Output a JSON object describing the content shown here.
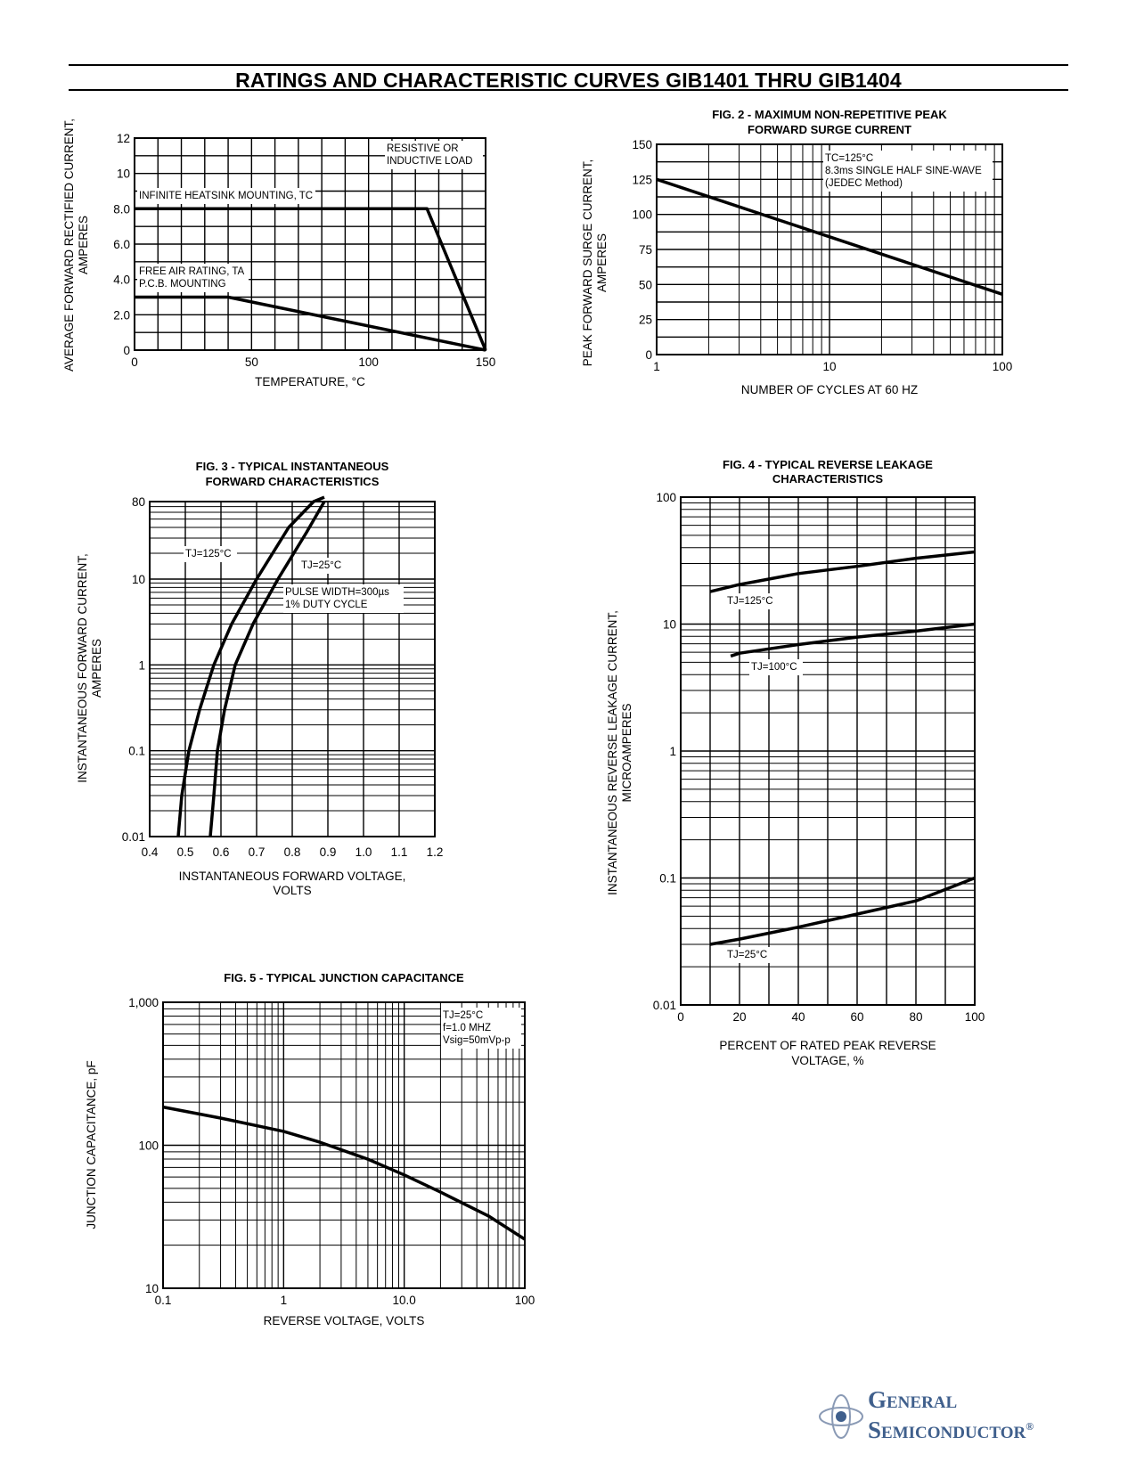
{
  "page": {
    "title": "RATINGS AND CHARACTERISTIC CURVES GIB1401 THRU GIB1404",
    "logo": {
      "line1": "General",
      "line2": "Semiconductor",
      "mark": "®",
      "color": "#3f5f8c"
    }
  },
  "chart_data": [
    {
      "id": "fig1",
      "type": "line",
      "title": "",
      "xlabel": "TEMPERATURE, °C",
      "ylabel": [
        "AVERAGE FORWARD RECTIFIED CURRENT,",
        "AMPERES"
      ],
      "xlim": [
        0,
        150
      ],
      "ylim": [
        0,
        12
      ],
      "xticks": [
        0,
        50,
        100,
        150
      ],
      "xtick_labels": [
        "0",
        "50",
        "100",
        "150"
      ],
      "yticks": [
        0,
        2,
        4,
        6,
        8,
        10,
        12
      ],
      "ytick_labels": [
        "0",
        "2.0",
        "4.0",
        "6.0",
        "8.0",
        "10",
        "12"
      ],
      "grid": true,
      "series": [
        {
          "name": "INFINITE HEATSINK MOUNTING, TC",
          "x": [
            0,
            125,
            150
          ],
          "y": [
            8.0,
            8.0,
            0
          ]
        },
        {
          "name": "FREE AIR RATING, TA",
          "x": [
            0,
            40,
            150
          ],
          "y": [
            3.0,
            3.0,
            0
          ]
        }
      ],
      "annotations": [
        {
          "lines": [
            "RESISTIVE OR",
            "INDUCTIVE LOAD"
          ]
        },
        {
          "lines": [
            "INFINITE HEATSINK MOUNTING, TC"
          ]
        },
        {
          "lines": [
            "FREE AIR RATING, TA",
            "P.C.B. MOUNTING"
          ]
        }
      ]
    },
    {
      "id": "fig2",
      "type": "line",
      "title": [
        "FIG. 2 - MAXIMUM NON-REPETITIVE PEAK",
        "FORWARD SURGE CURRENT"
      ],
      "xlabel": "NUMBER OF CYCLES AT 60 HZ",
      "ylabel": [
        "PEAK FORWARD SURGE CURRENT,",
        "AMPERES"
      ],
      "xscale": "log",
      "xlim": [
        1,
        100
      ],
      "ylim": [
        0,
        150
      ],
      "xticks": [
        1,
        10,
        100
      ],
      "xtick_labels": [
        "1",
        "10",
        "100"
      ],
      "yticks": [
        0,
        25,
        50,
        75,
        100,
        125,
        150
      ],
      "ytick_labels": [
        "0",
        "25",
        "50",
        "75",
        "100",
        "125",
        "150"
      ],
      "grid": true,
      "series": [
        {
          "name": "",
          "x": [
            1,
            100
          ],
          "y": [
            125,
            43
          ]
        }
      ],
      "annotations": [
        {
          "lines": [
            "TC=125°C",
            "8.3ms SINGLE HALF SINE-WAVE",
            "(JEDEC Method)"
          ]
        }
      ]
    },
    {
      "id": "fig3",
      "type": "line",
      "title": [
        "FIG. 3 - TYPICAL INSTANTANEOUS",
        "FORWARD CHARACTERISTICS"
      ],
      "xlabel": [
        "INSTANTANEOUS FORWARD VOLTAGE,",
        "VOLTS"
      ],
      "ylabel": [
        "INSTANTANEOUS FORWARD CURRENT,",
        "AMPERES"
      ],
      "yscale": "log",
      "xlim": [
        0.4,
        1.2
      ],
      "ylim": [
        0.01,
        80
      ],
      "xticks": [
        0.4,
        0.5,
        0.6,
        0.7,
        0.8,
        0.9,
        1.0,
        1.1,
        1.2
      ],
      "xtick_labels": [
        "0.4",
        "0.5",
        "0.6",
        "0.7",
        "0.8",
        "0.9",
        "1.0",
        "1.1",
        "1.2"
      ],
      "yticks": [
        0.01,
        0.1,
        1,
        10,
        80
      ],
      "ytick_labels": [
        "0.01",
        "0.1",
        "1",
        "10",
        "80"
      ],
      "grid": true,
      "series": [
        {
          "name": "TJ=125°C",
          "x": [
            0.48,
            0.49,
            0.51,
            0.54,
            0.58,
            0.63,
            0.7,
            0.79,
            0.86,
            0.89
          ],
          "y": [
            0.01,
            0.03,
            0.1,
            0.3,
            1,
            3,
            10,
            40,
            80,
            90
          ]
        },
        {
          "name": "TJ=25°C",
          "x": [
            0.57,
            0.58,
            0.59,
            0.61,
            0.64,
            0.69,
            0.76,
            0.84,
            0.89
          ],
          "y": [
            0.01,
            0.03,
            0.1,
            0.3,
            1,
            3,
            10,
            35,
            80
          ]
        }
      ],
      "annotations": [
        {
          "lines": [
            "TJ=125°C"
          ]
        },
        {
          "lines": [
            "TJ=25°C"
          ]
        },
        {
          "lines": [
            "PULSE WIDTH=300µs",
            "1% DUTY CYCLE"
          ]
        }
      ]
    },
    {
      "id": "fig4",
      "type": "line",
      "title": [
        "FIG. 4 - TYPICAL REVERSE LEAKAGE",
        "CHARACTERISTICS"
      ],
      "xlabel": [
        "PERCENT OF RATED PEAK REVERSE",
        "VOLTAGE, %"
      ],
      "ylabel": [
        "INSTANTANEOUS REVERSE LEAKAGE CURRENT,",
        "MICROAMPERES"
      ],
      "yscale": "log",
      "xlim": [
        0,
        100
      ],
      "ylim": [
        0.01,
        100
      ],
      "xticks": [
        0,
        20,
        40,
        60,
        80,
        100
      ],
      "xtick_labels": [
        "0",
        "20",
        "40",
        "60",
        "80",
        "100"
      ],
      "yticks": [
        0.01,
        0.1,
        1,
        10,
        100
      ],
      "ytick_labels": [
        "0.01",
        "0.1",
        "1",
        "10",
        "100"
      ],
      "grid": true,
      "series": [
        {
          "name": "TJ=125°C",
          "x": [
            10,
            20,
            40,
            60,
            80,
            100
          ],
          "y": [
            18,
            20.5,
            25,
            28.5,
            33,
            37
          ]
        },
        {
          "name": "TJ=100°C",
          "x": [
            17,
            20,
            40,
            60,
            80,
            100
          ],
          "y": [
            5.6,
            5.9,
            6.9,
            7.9,
            8.8,
            10
          ]
        },
        {
          "name": "TJ=25°C",
          "x": [
            10,
            20,
            40,
            60,
            80,
            100
          ],
          "y": [
            0.03,
            0.033,
            0.041,
            0.052,
            0.066,
            0.1
          ]
        }
      ],
      "annotations": [
        {
          "lines": [
            "TJ=125°C"
          ]
        },
        {
          "lines": [
            "TJ=100°C"
          ]
        },
        {
          "lines": [
            "TJ=25°C"
          ]
        }
      ]
    },
    {
      "id": "fig5",
      "type": "line",
      "title": "FIG. 5 - TYPICAL JUNCTION CAPACITANCE",
      "xlabel": "REVERSE VOLTAGE, VOLTS",
      "ylabel": "JUNCTION CAPACITANCE, pF",
      "xscale": "log",
      "yscale": "log",
      "xlim": [
        0.1,
        100
      ],
      "ylim": [
        10,
        1000
      ],
      "xticks": [
        0.1,
        1,
        10,
        100
      ],
      "xtick_labels": [
        "0.1",
        "1",
        "10.0",
        "100"
      ],
      "yticks": [
        10,
        100,
        1000
      ],
      "ytick_labels": [
        "10",
        "100",
        "1,000"
      ],
      "grid": true,
      "series": [
        {
          "name": "",
          "x": [
            0.1,
            0.3,
            1,
            2,
            5,
            10,
            20,
            50,
            100
          ],
          "y": [
            185,
            155,
            125,
            105,
            80,
            62,
            47,
            32,
            22
          ]
        }
      ],
      "annotations": [
        {
          "lines": [
            "TJ=25°C",
            "f=1.0 MHZ",
            "Vsig=50mVp-p"
          ]
        }
      ]
    }
  ]
}
